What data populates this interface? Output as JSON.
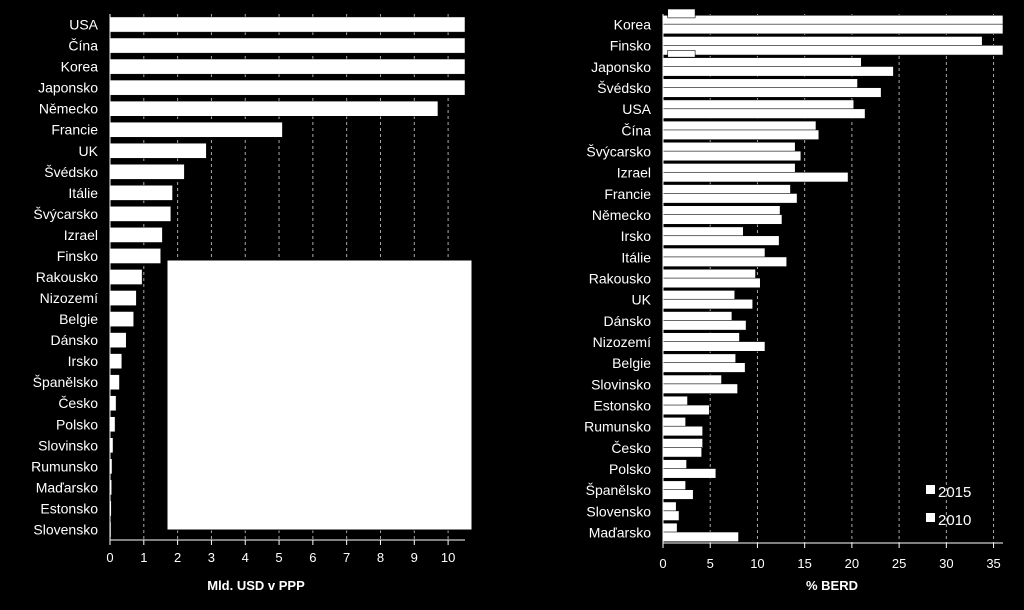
{
  "chart_data": [
    {
      "type": "bar",
      "orientation": "horizontal",
      "title": "",
      "xlabel": "Mld. USD v PPP",
      "ylabel": "",
      "xlim": [
        0,
        10.5
      ],
      "ticks": [
        0,
        1,
        2,
        3,
        4,
        5,
        6,
        7,
        8,
        9,
        10
      ],
      "grid": "vertical dashed",
      "categories": [
        "USA",
        "Čína",
        "Korea",
        "Japonsko",
        "Německo",
        "Francie",
        "UK",
        "Švédsko",
        "Itálie",
        "Švýcarsko",
        "Izrael",
        "Finsko",
        "Rakousko",
        "Nizozemí",
        "Belgie",
        "Dánsko",
        "Irsko",
        "Španělsko",
        "Česko",
        "Polsko",
        "Slovinsko",
        "Rumunsko",
        "Maďarsko",
        "Estonsko",
        "Slovensko"
      ],
      "values": [
        10.5,
        10.5,
        10.5,
        10.5,
        9.7,
        5.1,
        2.85,
        2.2,
        1.85,
        1.8,
        1.55,
        1.5,
        0.95,
        0.78,
        0.7,
        0.48,
        0.35,
        0.28,
        0.18,
        0.15,
        0.09,
        0.06,
        0.05,
        0.04,
        0.03
      ],
      "inset_box": true
    },
    {
      "type": "bar",
      "orientation": "horizontal",
      "title": "",
      "xlabel": "% BERD",
      "ylabel": "",
      "xlim": [
        0,
        36
      ],
      "ticks": [
        0,
        5,
        10,
        15,
        20,
        25,
        30,
        35
      ],
      "grid": "vertical dashed",
      "legend": "bottom-right",
      "categories": [
        "Korea",
        "Finsko",
        "Japonsko",
        "Švédsko",
        "USA",
        "Čína",
        "Švýcarsko",
        "Izrael",
        "Francie",
        "Německo",
        "Irsko",
        "Itálie",
        "Rakousko",
        "UK",
        "Dánsko",
        "Nizozemí",
        "Belgie",
        "Slovinsko",
        "Estonsko",
        "Rumunsko",
        "Česko",
        "Polsko",
        "Španělsko",
        "Slovensko",
        "Maďarsko"
      ],
      "series": [
        {
          "name": "2015",
          "values": [
            36,
            33.8,
            21,
            20.6,
            20.2,
            16.2,
            14,
            14,
            13.5,
            12.4,
            8.5,
            10.8,
            9.8,
            7.6,
            7.3,
            8.1,
            7.7,
            6.2,
            2.6,
            2.4,
            4.2,
            2.5,
            2.4,
            1.4,
            1.5
          ]
        },
        {
          "name": "2010",
          "values": [
            36,
            36,
            24.4,
            23.1,
            21.4,
            16.5,
            14.6,
            19.6,
            14.2,
            12.6,
            12.3,
            13.1,
            10.3,
            9.5,
            8.8,
            10.8,
            8.7,
            7.9,
            4.9,
            4.2,
            4.1,
            5.6,
            3.2,
            1.7,
            8
          ]
        }
      ],
      "extra_bar": {
        "row": 0,
        "value": 3.4
      }
    }
  ]
}
